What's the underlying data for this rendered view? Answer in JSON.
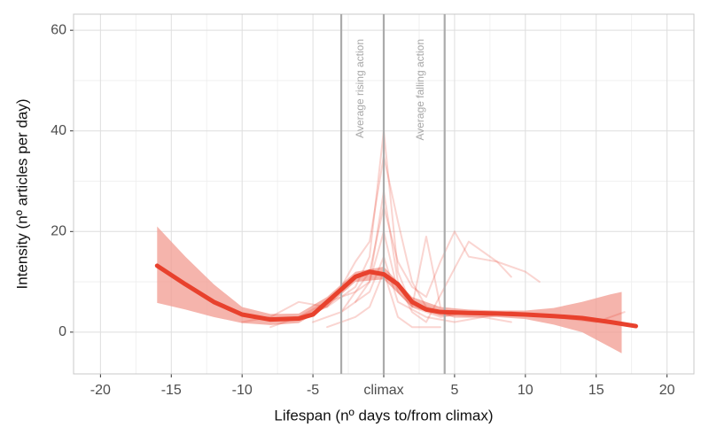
{
  "chart_data": {
    "type": "line",
    "x_label": "Lifespan (nº days to/from climax)",
    "y_label": "Intensity (nº articles per day)",
    "xlim": [
      -21.9,
      21.9
    ],
    "ylim": [
      -8.3,
      63.2
    ],
    "xticks": [
      -20,
      -15,
      -10,
      -5,
      {
        "value": 0,
        "label": "climax"
      },
      5,
      10,
      15,
      20
    ],
    "yticks": [
      0,
      20,
      40,
      60
    ],
    "x_minor_ticks": [
      -17.5,
      -12.5,
      -7.5,
      -2.5,
      2.5,
      7.5,
      12.5,
      17.5
    ],
    "y_minor_ticks": [
      10,
      30,
      50
    ],
    "grid": true,
    "vlines": [
      {
        "value": -3,
        "label": "Average rising action"
      },
      {
        "value": 0
      },
      {
        "value": 4.3,
        "label": "Average falling action"
      }
    ],
    "vline_color": "#ababab",
    "series_color": "#e8412d",
    "series": [
      {
        "x": [
          -10,
          -8,
          -6,
          -4,
          -2,
          -1,
          0,
          1,
          2,
          4,
          6
        ],
        "values": [
          2,
          3,
          6,
          5,
          9,
          15,
          40,
          12,
          5,
          3,
          4
        ]
      },
      {
        "x": [
          -6,
          -4,
          -3,
          -2,
          -1,
          0,
          1,
          2,
          3,
          5,
          7,
          9
        ],
        "values": [
          3,
          5,
          9,
          14,
          18,
          35,
          22,
          10,
          5,
          3,
          3,
          2
        ]
      },
      {
        "x": [
          -3,
          -2,
          -1,
          0,
          1,
          2,
          3,
          4,
          5,
          6,
          8,
          10,
          11
        ],
        "values": [
          4,
          8,
          12,
          25,
          14,
          9,
          7,
          14,
          20,
          15,
          14,
          12,
          10
        ]
      },
      {
        "x": [
          -8,
          -6,
          -4,
          -2,
          -1,
          0,
          1,
          2,
          3,
          6,
          8,
          9
        ],
        "values": [
          1,
          3,
          6,
          8,
          10,
          28,
          10,
          4,
          2,
          18,
          14,
          11
        ]
      },
      {
        "x": [
          -2,
          -1,
          0,
          1,
          2,
          3,
          4
        ],
        "values": [
          6,
          10,
          20,
          8,
          5,
          19,
          5
        ]
      },
      {
        "x": [
          -5,
          -3,
          -1,
          0,
          1,
          3,
          5,
          7,
          9,
          12,
          15,
          17
        ],
        "values": [
          2,
          4,
          8,
          15,
          6,
          3,
          2,
          3,
          4,
          3,
          2,
          4
        ]
      },
      {
        "x": [
          -4,
          -2,
          -1,
          0,
          1,
          2,
          4
        ],
        "values": [
          1,
          3,
          5,
          12,
          3,
          1,
          1
        ]
      }
    ],
    "smooth": {
      "color": "#e8412d",
      "x": [
        -16,
        -14,
        -12,
        -10,
        -8,
        -6,
        -5,
        -4,
        -3,
        -2,
        -1,
        0,
        1,
        2,
        3,
        4,
        6,
        8,
        10,
        12,
        14,
        16,
        17.8
      ],
      "values": [
        13.2,
        9.5,
        6,
        3.5,
        2.5,
        2.7,
        3.5,
        6,
        8.5,
        11,
        12,
        11.5,
        9.5,
        6,
        4.5,
        4,
        3.8,
        3.7,
        3.5,
        3.2,
        2.8,
        2,
        1.2
      ]
    },
    "ribbon": {
      "color": "#f19b90",
      "x": [
        -16,
        -14,
        -12,
        -10,
        -8,
        -6,
        -4,
        -2,
        0,
        2,
        4,
        6,
        8,
        10,
        12,
        14,
        16,
        16.8
      ],
      "upper": [
        21,
        15,
        9.5,
        5,
        3.6,
        3.7,
        7,
        12,
        13,
        7,
        5,
        4.5,
        4.3,
        4.3,
        4.8,
        6,
        7.5,
        8
      ],
      "lower": [
        5.8,
        4.5,
        3,
        1.8,
        1.4,
        1.8,
        5,
        10,
        10.5,
        5,
        3.2,
        3,
        3,
        2.6,
        1.5,
        0,
        -3,
        -4.2
      ]
    }
  }
}
